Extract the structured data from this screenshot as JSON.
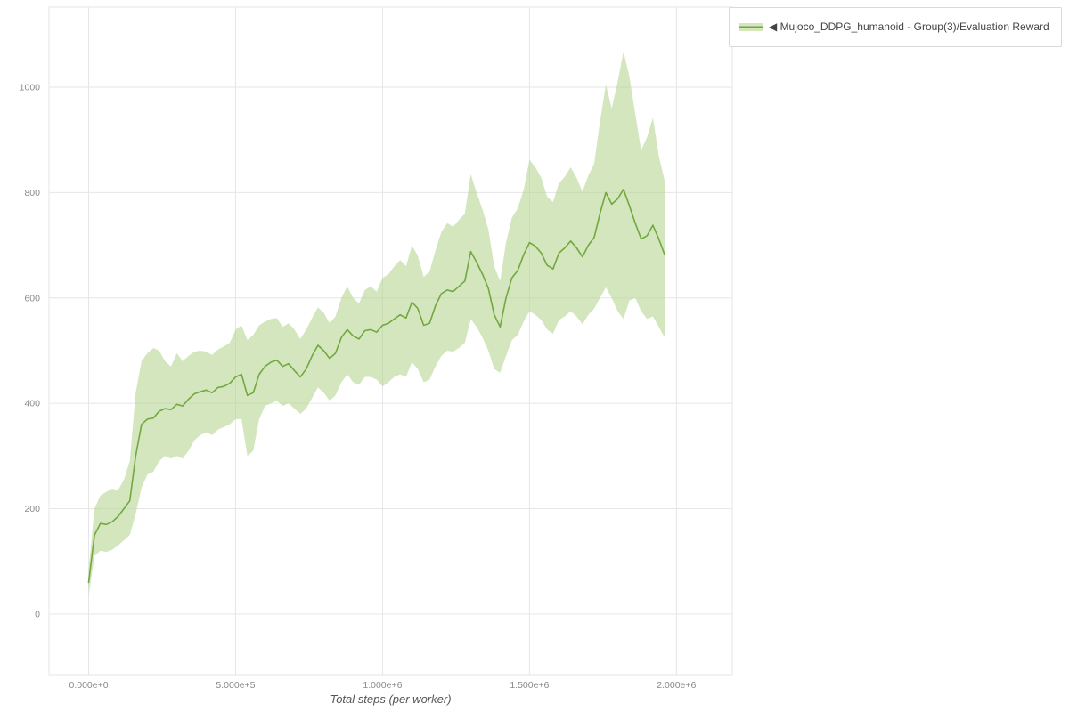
{
  "page": {
    "background": "#ffffff"
  },
  "legend": {
    "label": "◀ Mujoco_DDPG_humanoid - Group(3)/Evaluation Reward"
  },
  "colors": {
    "line": "#73a83e",
    "band": "#b6d693",
    "band_opacity": 0.6,
    "grid": "#e6e6e6",
    "tick_text": "#8a8a8a",
    "axis_title": "#555555",
    "legend_border": "#d9d9d9"
  },
  "chart_data": {
    "type": "line",
    "title": "",
    "xlabel": "Total steps (per worker)",
    "ylabel": "",
    "grid": true,
    "legend_position": "top-right",
    "xlim": [
      -135000,
      2190000
    ],
    "ylim": [
      -115,
      1152
    ],
    "x_ticks": [
      {
        "v": 0,
        "label": "0.000e+0"
      },
      {
        "v": 500000,
        "label": "5.000e+5"
      },
      {
        "v": 1000000,
        "label": "1.000e+6"
      },
      {
        "v": 1500000,
        "label": "1.500e+6"
      },
      {
        "v": 2000000,
        "label": "2.000e+6"
      }
    ],
    "y_ticks": [
      {
        "v": 0,
        "label": "0"
      },
      {
        "v": 200,
        "label": "200"
      },
      {
        "v": 400,
        "label": "400"
      },
      {
        "v": 600,
        "label": "600"
      },
      {
        "v": 800,
        "label": "800"
      },
      {
        "v": 1000,
        "label": "1000"
      }
    ],
    "series": [
      {
        "name": "Mujoco_DDPG_humanoid - Group(3)/Evaluation Reward",
        "color": "#73a83e",
        "band_color": "#b6d693",
        "x": [
          0,
          20000,
          40000,
          60000,
          80000,
          100000,
          120000,
          140000,
          160000,
          180000,
          200000,
          220000,
          240000,
          260000,
          280000,
          300000,
          320000,
          340000,
          360000,
          380000,
          400000,
          420000,
          440000,
          460000,
          480000,
          500000,
          520000,
          540000,
          560000,
          580000,
          600000,
          620000,
          640000,
          660000,
          680000,
          700000,
          720000,
          740000,
          760000,
          780000,
          800000,
          820000,
          840000,
          860000,
          880000,
          900000,
          920000,
          940000,
          960000,
          980000,
          1000000,
          1020000,
          1040000,
          1060000,
          1080000,
          1100000,
          1120000,
          1140000,
          1160000,
          1180000,
          1200000,
          1220000,
          1240000,
          1260000,
          1280000,
          1300000,
          1320000,
          1340000,
          1360000,
          1380000,
          1400000,
          1420000,
          1440000,
          1460000,
          1480000,
          1500000,
          1520000,
          1540000,
          1560000,
          1580000,
          1600000,
          1620000,
          1640000,
          1660000,
          1680000,
          1700000,
          1720000,
          1740000,
          1760000,
          1780000,
          1800000,
          1820000,
          1840000,
          1860000,
          1880000,
          1900000,
          1920000,
          1940000,
          1960000
        ],
        "mean": [
          60,
          150,
          172,
          170,
          175,
          185,
          200,
          215,
          300,
          360,
          370,
          372,
          385,
          390,
          388,
          398,
          395,
          408,
          418,
          422,
          425,
          420,
          430,
          432,
          438,
          450,
          455,
          415,
          420,
          455,
          470,
          478,
          482,
          470,
          475,
          462,
          450,
          465,
          490,
          510,
          500,
          485,
          495,
          525,
          540,
          528,
          522,
          538,
          540,
          535,
          548,
          552,
          560,
          568,
          562,
          592,
          580,
          548,
          552,
          585,
          608,
          615,
          612,
          622,
          632,
          688,
          668,
          645,
          618,
          568,
          545,
          600,
          638,
          652,
          682,
          705,
          698,
          685,
          662,
          655,
          685,
          695,
          708,
          695,
          678,
          700,
          715,
          760,
          800,
          778,
          788,
          806,
          775,
          742,
          712,
          718,
          738,
          712,
          682
        ],
        "lo": [
          35,
          110,
          120,
          118,
          122,
          130,
          140,
          150,
          190,
          240,
          265,
          270,
          290,
          300,
          295,
          300,
          295,
          310,
          330,
          340,
          345,
          340,
          350,
          355,
          360,
          370,
          370,
          300,
          310,
          370,
          395,
          400,
          405,
          395,
          400,
          390,
          380,
          390,
          410,
          430,
          420,
          405,
          415,
          440,
          455,
          440,
          435,
          450,
          450,
          445,
          432,
          440,
          450,
          455,
          450,
          478,
          465,
          440,
          445,
          470,
          490,
          500,
          498,
          505,
          515,
          560,
          545,
          525,
          500,
          465,
          458,
          490,
          520,
          530,
          555,
          575,
          568,
          558,
          540,
          532,
          558,
          565,
          575,
          565,
          550,
          568,
          580,
          600,
          620,
          600,
          575,
          560,
          595,
          600,
          575,
          560,
          565,
          545,
          525
        ],
        "hi": [
          85,
          200,
          225,
          232,
          238,
          235,
          255,
          290,
          420,
          480,
          495,
          505,
          500,
          480,
          470,
          495,
          480,
          490,
          498,
          500,
          498,
          492,
          502,
          508,
          515,
          540,
          548,
          520,
          530,
          548,
          555,
          560,
          562,
          545,
          552,
          540,
          522,
          540,
          562,
          582,
          572,
          552,
          565,
          600,
          622,
          600,
          590,
          615,
          622,
          612,
          638,
          645,
          660,
          672,
          660,
          700,
          680,
          640,
          650,
          690,
          725,
          742,
          735,
          748,
          760,
          835,
          800,
          768,
          730,
          660,
          632,
          705,
          752,
          770,
          805,
          862,
          848,
          828,
          792,
          782,
          818,
          830,
          848,
          828,
          802,
          832,
          855,
          935,
          1005,
          960,
          1010,
          1068,
          1020,
          950,
          880,
          905,
          942,
          870,
          822
        ]
      }
    ]
  }
}
